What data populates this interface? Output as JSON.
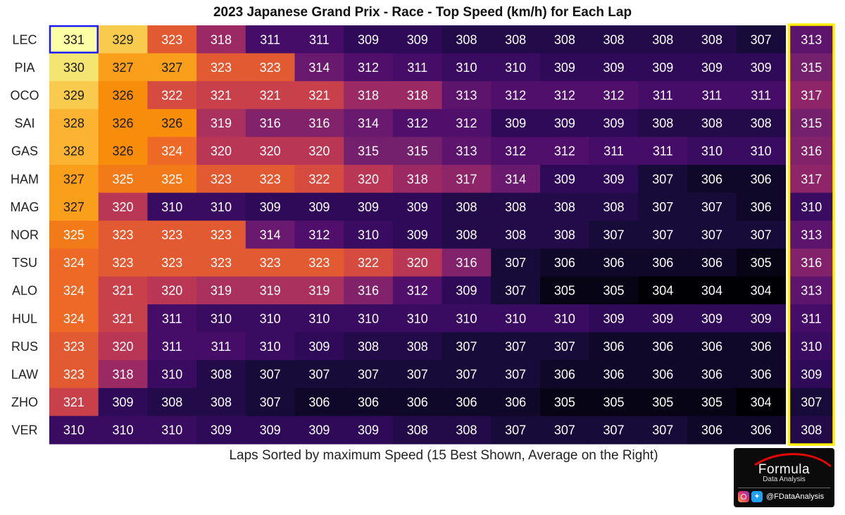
{
  "chart_data": {
    "type": "heatmap",
    "title": "2023 Japanese Grand Prix - Race - Top Speed (km/h) for Each Lap",
    "xlabel": "Laps Sorted by maximum Speed (15 Best Shown, Average on the Right)",
    "drivers": [
      "LEC",
      "PIA",
      "OCO",
      "SAI",
      "GAS",
      "HAM",
      "MAG",
      "NOR",
      "TSU",
      "ALO",
      "HUL",
      "RUS",
      "LAW",
      "ZHO",
      "VER"
    ],
    "values": [
      [
        331,
        329,
        323,
        318,
        311,
        311,
        309,
        309,
        308,
        308,
        308,
        308,
        308,
        308,
        307
      ],
      [
        330,
        327,
        327,
        323,
        323,
        314,
        312,
        311,
        310,
        310,
        309,
        309,
        309,
        309,
        309
      ],
      [
        329,
        326,
        322,
        321,
        321,
        321,
        318,
        318,
        313,
        312,
        312,
        312,
        311,
        311,
        311
      ],
      [
        328,
        326,
        326,
        319,
        316,
        316,
        314,
        312,
        312,
        309,
        309,
        309,
        308,
        308,
        308
      ],
      [
        328,
        326,
        324,
        320,
        320,
        320,
        315,
        315,
        313,
        312,
        312,
        311,
        311,
        310,
        310
      ],
      [
        327,
        325,
        325,
        323,
        323,
        322,
        320,
        318,
        317,
        314,
        309,
        309,
        307,
        306,
        306
      ],
      [
        327,
        320,
        310,
        310,
        309,
        309,
        309,
        309,
        308,
        308,
        308,
        308,
        307,
        307,
        306
      ],
      [
        325,
        323,
        323,
        323,
        314,
        312,
        310,
        309,
        308,
        308,
        308,
        307,
        307,
        307,
        307
      ],
      [
        324,
        323,
        323,
        323,
        323,
        323,
        322,
        320,
        316,
        307,
        306,
        306,
        306,
        306,
        305
      ],
      [
        324,
        321,
        320,
        319,
        319,
        319,
        316,
        312,
        309,
        307,
        305,
        305,
        304,
        304,
        304
      ],
      [
        324,
        321,
        311,
        310,
        310,
        310,
        310,
        310,
        310,
        310,
        310,
        309,
        309,
        309,
        309
      ],
      [
        323,
        320,
        311,
        311,
        310,
        309,
        308,
        308,
        307,
        307,
        307,
        306,
        306,
        306,
        306
      ],
      [
        323,
        318,
        310,
        308,
        307,
        307,
        307,
        307,
        307,
        307,
        306,
        306,
        306,
        306,
        306
      ],
      [
        321,
        309,
        308,
        308,
        307,
        306,
        306,
        306,
        306,
        306,
        305,
        305,
        305,
        305,
        304
      ],
      [
        310,
        310,
        310,
        309,
        309,
        309,
        309,
        308,
        308,
        307,
        307,
        307,
        307,
        306,
        306
      ]
    ],
    "averages": [
      313,
      315,
      317,
      315,
      316,
      317,
      310,
      313,
      316,
      313,
      311,
      310,
      309,
      307,
      308
    ],
    "color_range": [
      304,
      331
    ],
    "colormap": "inferno",
    "highlight_max_cell": "LEC lap 1",
    "highlight_average_column_color": "#ffee00",
    "highlight_max_cell_color": "#1a1aff"
  },
  "logo": {
    "name": "Formula",
    "sub": "Data Analysis",
    "handle": "@FDataAnalysis",
    "icons": [
      "instagram-icon",
      "twitter-icon"
    ]
  }
}
